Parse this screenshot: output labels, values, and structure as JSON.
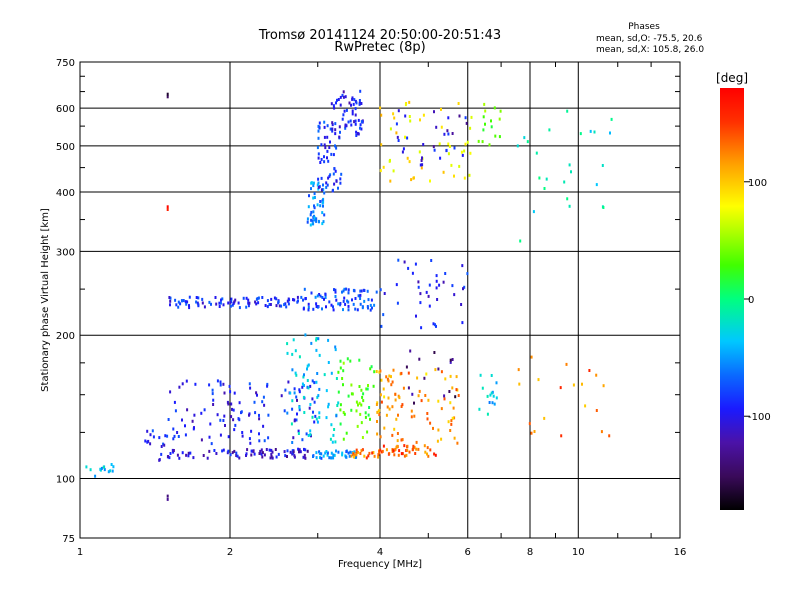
{
  "chart_data": {
    "type": "scatter",
    "title": "Tromsø 20141124 20:50:00-20:51:43",
    "subtitle": "RwPretec (8p)",
    "phase_box": {
      "title": "Phases",
      "line_o": "mean, sd,O: -75.5, 20.6",
      "line_x": "mean, sd,X: 105.8, 26.0"
    },
    "xlabel": "Frequency [MHz]",
    "ylabel": "Stationary phase Virtual Height [km]",
    "x_scale": "log",
    "y_scale": "log",
    "xlim": [
      1,
      16
    ],
    "ylim": [
      75,
      750
    ],
    "x_ticks": [
      1,
      2,
      4,
      6,
      8,
      10,
      16
    ],
    "x_tick_labels": [
      "1",
      "2",
      "4",
      "6",
      "8",
      "10",
      "16"
    ],
    "y_ticks": [
      75,
      100,
      200,
      300,
      400,
      500,
      600,
      750
    ],
    "y_tick_labels": [
      "75",
      "100",
      "200",
      "300",
      "400",
      "500",
      "600",
      "750"
    ],
    "grid": true,
    "colorbar": {
      "label": "deg",
      "range": [
        -180,
        180
      ],
      "ticks": [
        -100,
        0,
        100
      ],
      "tick_labels": [
        "-100",
        "0",
        "100"
      ]
    },
    "point_groups": [
      {
        "f": [
          1.02,
          1.2
        ],
        "h": [
          100,
          107
        ],
        "phase": [
          -40,
          -40
        ],
        "n": 14
      },
      {
        "f": [
          1.35,
          1.55
        ],
        "h": [
          108,
          126
        ],
        "phase": [
          -100,
          -100
        ],
        "n": 20
      },
      {
        "f": [
          1.5,
          2.9
        ],
        "h": [
          110,
          115
        ],
        "phase": [
          -110,
          -110
        ],
        "n": 80
      },
      {
        "f": [
          2.9,
          3.6
        ],
        "h": [
          110,
          114
        ],
        "phase": [
          -60,
          -60
        ],
        "n": 40
      },
      {
        "f": [
          3.5,
          4.0
        ],
        "h": [
          110,
          115
        ],
        "phase": [
          140,
          140
        ],
        "n": 25
      },
      {
        "f": [
          4.0,
          5.2
        ],
        "h": [
          111,
          117
        ],
        "phase": [
          150,
          150
        ],
        "n": 45
      },
      {
        "f": [
          1.5,
          3.0
        ],
        "h": [
          118,
          160
        ],
        "phase": [
          -100,
          -100
        ],
        "n": 120
      },
      {
        "f": [
          2.6,
          3.3
        ],
        "h": [
          118,
          200
        ],
        "phase": [
          -40,
          -40
        ],
        "n": 70
      },
      {
        "f": [
          3.3,
          3.9
        ],
        "h": [
          118,
          180
        ],
        "phase": [
          30,
          30
        ],
        "n": 50
      },
      {
        "f": [
          3.9,
          5.8
        ],
        "h": [
          118,
          170
        ],
        "phase": [
          130,
          130
        ],
        "n": 90
      },
      {
        "f": [
          4.5,
          5.8
        ],
        "h": [
          140,
          190
        ],
        "phase": [
          -140,
          -140
        ],
        "n": 15
      },
      {
        "f": [
          6.3,
          7.0
        ],
        "h": [
          135,
          165
        ],
        "phase": [
          -40,
          -40
        ],
        "n": 15
      },
      {
        "f": [
          7.5,
          12.0
        ],
        "h": [
          120,
          180
        ],
        "phase": [
          140,
          140
        ],
        "n": 20
      },
      {
        "f": [
          1.5,
          2.8
        ],
        "h": [
          228,
          240
        ],
        "phase": [
          -95,
          -95
        ],
        "n": 90
      },
      {
        "f": [
          2.8,
          4.0
        ],
        "h": [
          225,
          250
        ],
        "phase": [
          -80,
          -80
        ],
        "n": 80
      },
      {
        "f": [
          4.0,
          6.0
        ],
        "h": [
          205,
          290
        ],
        "phase": [
          -100,
          -100
        ],
        "n": 40
      },
      {
        "f": [
          2.85,
          3.1
        ],
        "h": [
          340,
          420
        ],
        "phase": [
          -60,
          -60
        ],
        "n": 50
      },
      {
        "f": [
          3.0,
          3.35
        ],
        "h": [
          400,
          560
        ],
        "phase": [
          -90,
          -90
        ],
        "n": 60
      },
      {
        "f": [
          3.2,
          3.7
        ],
        "h": [
          520,
          650
        ],
        "phase": [
          -100,
          -100
        ],
        "n": 60
      },
      {
        "f": [
          4.0,
          6.2
        ],
        "h": [
          420,
          620
        ],
        "phase": [
          100,
          100
        ],
        "n": 50
      },
      {
        "f": [
          4.3,
          6.0
        ],
        "h": [
          450,
          600
        ],
        "phase": [
          -110,
          -110
        ],
        "n": 30
      },
      {
        "f": [
          6.3,
          7.0
        ],
        "h": [
          500,
          620
        ],
        "phase": [
          40,
          40
        ],
        "n": 15
      },
      {
        "f": [
          7.5,
          12.0
        ],
        "h": [
          310,
          600
        ],
        "phase": [
          -20,
          -20
        ],
        "n": 25
      },
      {
        "f": [
          1.5,
          1.5
        ],
        "h": [
          88,
          98
        ],
        "phase": [
          -140,
          -140
        ],
        "n": 2
      },
      {
        "f": [
          1.5,
          1.5
        ],
        "h": [
          630,
          650
        ],
        "phase": [
          -160,
          -160
        ],
        "n": 2
      },
      {
        "f": [
          1.5,
          1.5
        ],
        "h": [
          365,
          385
        ],
        "phase": [
          160,
          160
        ],
        "n": 2
      }
    ]
  }
}
